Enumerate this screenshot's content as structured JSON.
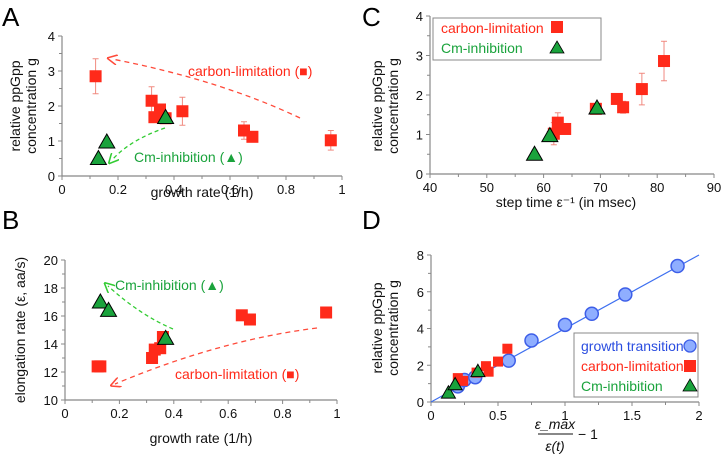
{
  "colors": {
    "carbon": "#ff2a1a",
    "cm": "#1aa33c",
    "growth": "#8faeff",
    "growth_stroke": "#3d5ee8",
    "fitline": "#3d6ff0",
    "axis": "#888888"
  },
  "chart_data": [
    {
      "id": "A",
      "panel_label": "A",
      "type": "scatter",
      "xlabel": "growth rate (1/h)",
      "ylabel_line1": "relative ppGpp",
      "ylabel_line2": "concentration g",
      "xlim": [
        0,
        1
      ],
      "ylim": [
        0,
        4
      ],
      "xticks": [
        0,
        0.2,
        0.4,
        0.6,
        0.8,
        1
      ],
      "xtick_labels": [
        "0",
        "0.2",
        "0.4",
        "0.6",
        "0.8",
        "1"
      ],
      "yticks": [
        0,
        1,
        2,
        3,
        4
      ],
      "ytick_labels": [
        "0",
        "1",
        "2",
        "3",
        "4"
      ],
      "series": [
        {
          "name": "carbon-limitation",
          "marker": "square",
          "x": [
            0.12,
            0.32,
            0.33,
            0.35,
            0.37,
            0.43,
            0.65,
            0.68,
            0.96
          ],
          "y": [
            2.85,
            2.15,
            1.68,
            1.9,
            1.65,
            1.85,
            1.3,
            1.12,
            1.02
          ],
          "err": [
            0.5,
            0.4,
            0.1,
            0.15,
            0.1,
            0.4,
            0.25,
            0.05,
            0.28
          ]
        },
        {
          "name": "Cm-inhibition",
          "marker": "triangle",
          "x": [
            0.13,
            0.16,
            0.37
          ],
          "y": [
            0.5,
            0.97,
            1.67
          ],
          "err": [
            0.1,
            0.1,
            0.1
          ]
        }
      ],
      "annotations": [
        {
          "text": "carbon-limitation (■)",
          "color": "carbon"
        },
        {
          "text": "Cm-inhibition (▲)",
          "color": "cm"
        }
      ]
    },
    {
      "id": "B",
      "panel_label": "B",
      "type": "scatter",
      "xlabel": "growth rate (1/h)",
      "ylabel": "elongation rate (ε, aa/s)",
      "xlim": [
        0,
        1
      ],
      "ylim": [
        10,
        20
      ],
      "xticks": [
        0,
        0.2,
        0.4,
        0.6,
        0.8,
        1
      ],
      "xtick_labels": [
        "0",
        "0.2",
        "0.4",
        "0.6",
        "0.8",
        "1"
      ],
      "yticks": [
        10,
        12,
        14,
        16,
        18,
        20
      ],
      "ytick_labels": [
        "10",
        "12",
        "14",
        "16",
        "18",
        "20"
      ],
      "series": [
        {
          "name": "carbon-limitation",
          "marker": "square",
          "x": [
            0.12,
            0.13,
            0.32,
            0.33,
            0.35,
            0.36,
            0.65,
            0.68,
            0.96
          ],
          "y": [
            12.4,
            12.4,
            13.0,
            13.6,
            13.7,
            14.5,
            16.05,
            15.75,
            16.25
          ]
        },
        {
          "name": "Cm-inhibition",
          "marker": "triangle",
          "x": [
            0.13,
            0.16,
            0.37
          ],
          "y": [
            17.0,
            16.4,
            14.4
          ]
        }
      ],
      "annotations": [
        {
          "text": "Cm-inhibition (▲)",
          "color": "cm"
        },
        {
          "text": "carbon-limitation (■)",
          "color": "carbon"
        }
      ]
    },
    {
      "id": "C",
      "panel_label": "C",
      "type": "scatter",
      "xlabel": "step time ε⁻¹ (in msec)",
      "ylabel_line1": "relative ppGpp",
      "ylabel_line2": "concentration g",
      "xlim": [
        40,
        90
      ],
      "ylim": [
        0,
        4
      ],
      "xticks": [
        40,
        50,
        60,
        70,
        80,
        90
      ],
      "xtick_labels": [
        "40",
        "50",
        "60",
        "70",
        "80",
        "90"
      ],
      "yticks": [
        0,
        1,
        2,
        3,
        4
      ],
      "ytick_labels": [
        "0",
        "1",
        "2",
        "3",
        "4"
      ],
      "legend": {
        "position": "top-left",
        "entries": [
          "carbon-limitation",
          "Cm-inhibition"
        ]
      },
      "series": [
        {
          "name": "carbon-limitation",
          "marker": "square",
          "x": [
            61.8,
            62.5,
            63.8,
            69.2,
            72.9,
            74.0,
            77.3,
            81.2
          ],
          "y": [
            1.02,
            1.3,
            1.14,
            1.65,
            1.9,
            1.69,
            2.15,
            2.86
          ],
          "err": [
            0.28,
            0.25,
            0.05,
            0.1,
            0.05,
            0.15,
            0.4,
            0.5
          ]
        },
        {
          "name": "Cm-inhibition",
          "marker": "triangle",
          "x": [
            58.4,
            61.1,
            69.4
          ],
          "y": [
            0.5,
            0.97,
            1.67
          ],
          "err": [
            0.1,
            0.1,
            0.1
          ]
        }
      ]
    },
    {
      "id": "D",
      "panel_label": "D",
      "type": "scatter",
      "xlabel_num": "ε_max",
      "xlabel_den": "ε(t)",
      "xlabel_suffix": "− 1",
      "ylabel_line1": "relative ppGpp",
      "ylabel_line2": "concentration g",
      "xlim": [
        0,
        2
      ],
      "ylim": [
        0,
        8
      ],
      "xticks": [
        0,
        0.5,
        1,
        1.5,
        2
      ],
      "xtick_labels": [
        "0",
        "0.5",
        "1",
        "1.5",
        "2"
      ],
      "yticks": [
        0,
        2,
        4,
        6,
        8
      ],
      "ytick_labels": [
        "0",
        "2",
        "4",
        "6",
        "8"
      ],
      "legend": {
        "position": "bottom-right",
        "entries": [
          "growth transition",
          "carbon-limitation",
          "Cm-inhibition"
        ]
      },
      "fit_line": {
        "slope": 4.0,
        "x": [
          0,
          2
        ]
      },
      "series": [
        {
          "name": "growth transition",
          "marker": "circle",
          "x": [
            0.2,
            0.25,
            0.33,
            0.58,
            0.75,
            1.0,
            1.2,
            1.45,
            1.84
          ],
          "y": [
            0.85,
            1.2,
            1.35,
            2.25,
            3.35,
            4.2,
            4.8,
            5.85,
            7.4
          ]
        },
        {
          "name": "carbon-limitation",
          "marker": "square",
          "x": [
            0.2,
            0.24,
            0.34,
            0.41,
            0.43,
            0.5,
            0.57
          ],
          "y": [
            1.3,
            1.15,
            1.6,
            1.95,
            1.65,
            2.2,
            2.9
          ]
        },
        {
          "name": "Cm-inhibition",
          "marker": "triangle",
          "x": [
            0.13,
            0.18,
            0.35
          ],
          "y": [
            0.5,
            0.95,
            1.67
          ]
        }
      ]
    }
  ]
}
